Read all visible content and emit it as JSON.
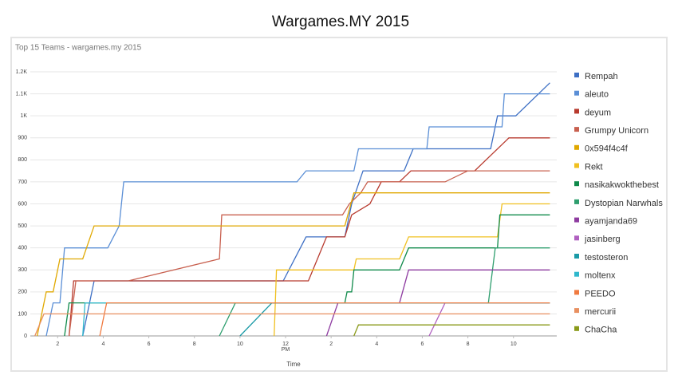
{
  "page_title": "Wargames.MY 2015",
  "chart_data": {
    "type": "line",
    "title": "Top 15 Teams - wargames.my 2015",
    "x_label": "Time",
    "x_period_label": "PM",
    "xlim": [
      0.8,
      23.9
    ],
    "xticks": [
      2,
      4,
      6,
      8,
      10,
      12,
      {
        "value": 14,
        "label": "2"
      },
      {
        "value": 16,
        "label": "4"
      },
      {
        "value": 18,
        "label": "6"
      },
      {
        "value": 20,
        "label": "8"
      },
      {
        "value": 22,
        "label": "10"
      }
    ],
    "ylim": [
      0,
      1200
    ],
    "yticks": [
      0,
      100,
      200,
      300,
      400,
      500,
      600,
      700,
      800,
      900,
      {
        "value": 1000,
        "label": "1K"
      },
      {
        "value": 1100,
        "label": "1.1K"
      },
      {
        "value": 1200,
        "label": "1.2K"
      }
    ],
    "grid": true,
    "legend": "right",
    "series": [
      {
        "name": "Rempah",
        "color": "#3d6fc4",
        "x": [
          3.1,
          3.6,
          11.9,
          12.9,
          14.6,
          14.9,
          15.4,
          17.2,
          17.6,
          21.0,
          21.3,
          22.1,
          23.6
        ],
        "values": [
          0,
          250,
          250,
          450,
          450,
          600,
          750,
          750,
          850,
          850,
          1000,
          1000,
          1150
        ]
      },
      {
        "name": "aleuto",
        "color": "#5b8fd6",
        "x": [
          1.5,
          1.8,
          2.1,
          2.3,
          4.2,
          4.7,
          4.9,
          12.5,
          12.9,
          15.0,
          15.2,
          18.2,
          18.3,
          21.5,
          21.6,
          23.6
        ],
        "values": [
          0,
          150,
          150,
          400,
          400,
          500,
          700,
          700,
          750,
          750,
          850,
          850,
          950,
          950,
          1100,
          1100
        ]
      },
      {
        "name": "deyum",
        "color": "#b83a2e",
        "x": [
          2.5,
          2.7,
          13.0,
          13.8,
          14.6,
          14.9,
          15.7,
          16.2,
          17.0,
          17.5,
          20.3,
          21.8,
          23.6
        ],
        "values": [
          0,
          250,
          250,
          450,
          450,
          550,
          600,
          700,
          700,
          750,
          750,
          900,
          900
        ]
      },
      {
        "name": "Grumpy Unicorn",
        "color": "#c8604f",
        "x": [
          2.5,
          2.8,
          5.1,
          9.1,
          9.2,
          14.5,
          14.8,
          15.3,
          15.6,
          19.0,
          20.0,
          23.6
        ],
        "values": [
          0,
          250,
          250,
          350,
          550,
          550,
          600,
          650,
          700,
          700,
          750,
          750
        ]
      },
      {
        "name": "0x594f4c4f",
        "color": "#e0a800",
        "x": [
          1.1,
          1.5,
          1.8,
          2.1,
          3.1,
          3.6,
          14.6,
          15.0,
          23.6
        ],
        "values": [
          0,
          200,
          200,
          350,
          350,
          500,
          500,
          650,
          650
        ]
      },
      {
        "name": "Rekt",
        "color": "#f0c020",
        "x": [
          11.5,
          11.6,
          15.0,
          15.1,
          17.0,
          17.4,
          21.3,
          21.5,
          23.6
        ],
        "values": [
          0,
          300,
          300,
          350,
          350,
          450,
          450,
          600,
          600
        ]
      },
      {
        "name": "nasikakwokthebest",
        "color": "#0f8a4a",
        "x": [
          2.3,
          2.5,
          14.6,
          14.7,
          14.9,
          15.0,
          17.0,
          17.4,
          21.3,
          21.4,
          23.6
        ],
        "values": [
          0,
          150,
          150,
          200,
          200,
          300,
          300,
          400,
          400,
          550,
          550
        ]
      },
      {
        "name": "Dystopian Narwhals",
        "color": "#2e9e6e",
        "x": [
          9.1,
          9.8,
          20.9,
          21.2,
          23.6
        ],
        "values": [
          0,
          150,
          150,
          400,
          400
        ]
      },
      {
        "name": "ayamjanda69",
        "color": "#8e3ba0",
        "x": [
          13.8,
          14.3,
          17.0,
          17.4,
          23.6
        ],
        "values": [
          0,
          150,
          150,
          300,
          300
        ]
      },
      {
        "name": "jasinberg",
        "color": "#b060c0",
        "x": [
          18.3,
          19.0,
          23.6
        ],
        "values": [
          0,
          150,
          150
        ]
      },
      {
        "name": "testosteron",
        "color": "#1a9aa6",
        "x": [
          10.0,
          11.4,
          23.6
        ],
        "values": [
          0,
          150,
          150
        ]
      },
      {
        "name": "moltenx",
        "color": "#30b8cc",
        "x": [
          3.1,
          3.2,
          23.6
        ],
        "values": [
          0,
          150,
          150
        ]
      },
      {
        "name": "PEEDO",
        "color": "#f07a40",
        "x": [
          3.85,
          4.15,
          23.6
        ],
        "values": [
          0,
          150,
          150
        ]
      },
      {
        "name": "mercurii",
        "color": "#e89060",
        "x": [
          1.0,
          1.4,
          23.6
        ],
        "values": [
          0,
          100,
          100
        ]
      },
      {
        "name": "ChaCha",
        "color": "#8a9a1a",
        "x": [
          15.0,
          15.2,
          23.6
        ],
        "values": [
          0,
          50,
          50
        ]
      }
    ]
  }
}
